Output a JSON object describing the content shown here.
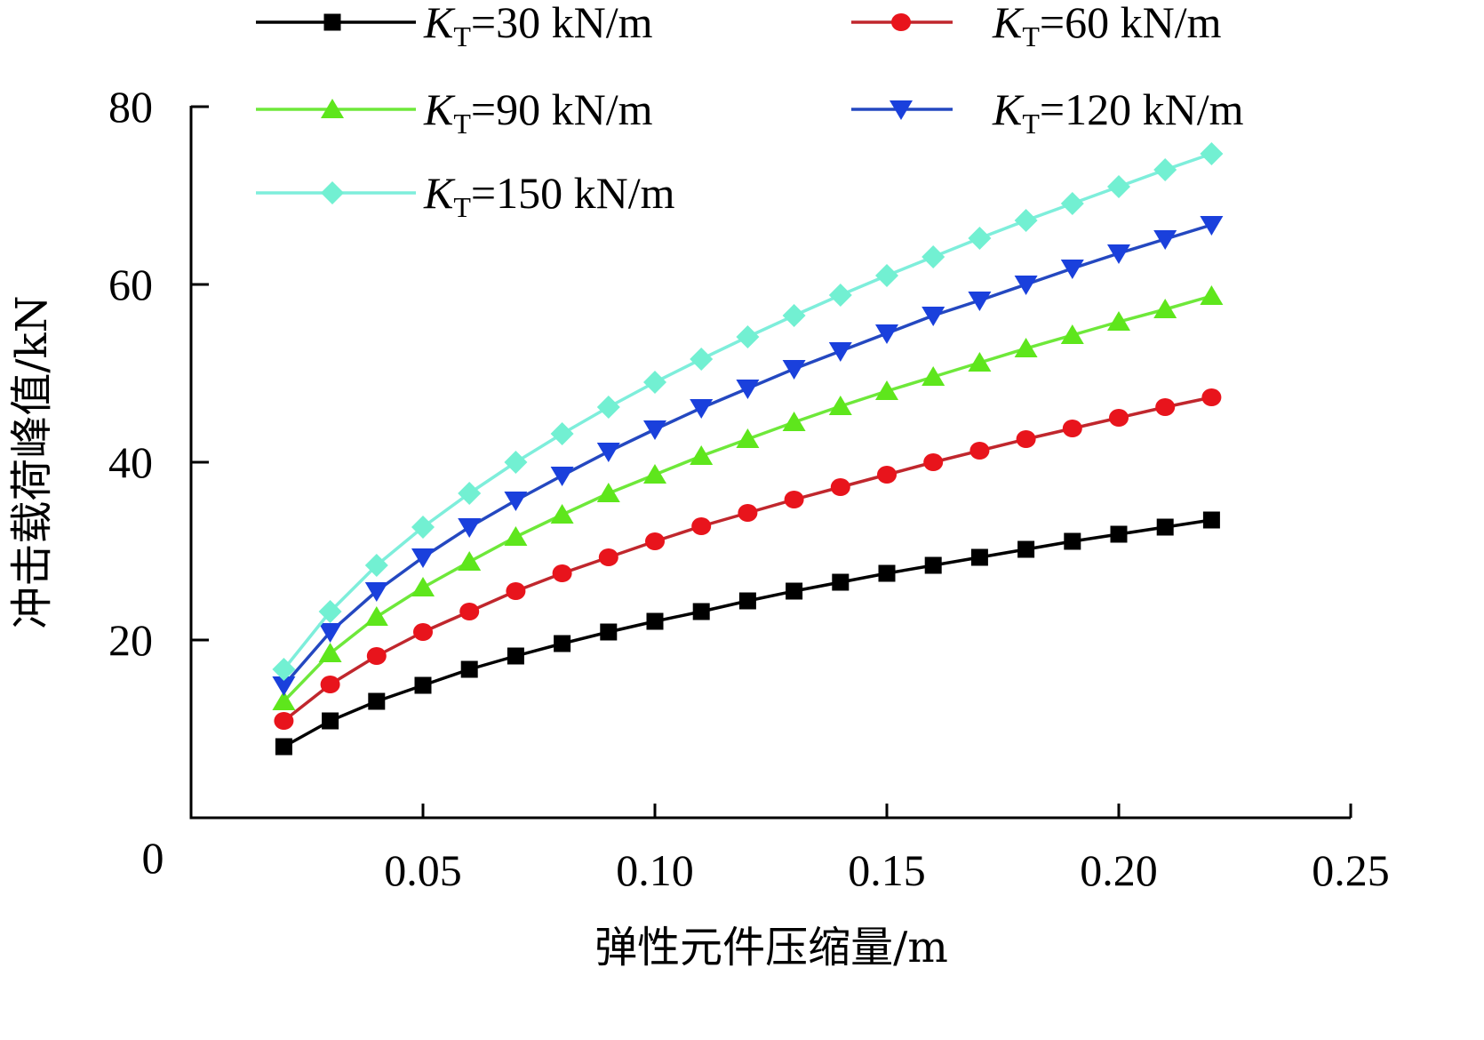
{
  "chart_data": {
    "type": "line",
    "title": "",
    "xlabel": "弹性元件压缩量/m",
    "ylabel": "冲击载荷峰值/kN",
    "xlim": [
      0,
      0.25
    ],
    "ylim": [
      0,
      80
    ],
    "x_ticks": [
      "0.05",
      "0.10",
      "0.15",
      "0.20",
      "0.25"
    ],
    "x_tick_values": [
      0.05,
      0.1,
      0.15,
      0.2,
      0.25
    ],
    "y_ticks": [
      "20",
      "40",
      "60",
      "80"
    ],
    "y_tick_values": [
      20,
      40,
      60,
      80
    ],
    "origin_label": "0",
    "grid": false,
    "legend_position": "top",
    "x": [
      0.02,
      0.03,
      0.04,
      0.05,
      0.06,
      0.07,
      0.08,
      0.09,
      0.1,
      0.11,
      0.12,
      0.13,
      0.14,
      0.15,
      0.16,
      0.17,
      0.18,
      0.19,
      0.2,
      0.21,
      0.22
    ],
    "series": [
      {
        "name": "KT=30 kN/m",
        "legend_k": "K",
        "legend_sub": "T",
        "legend_rest": "=30 kN/m",
        "color": "#000000",
        "marker": "square",
        "values": [
          8.0,
          10.9,
          13.1,
          14.9,
          16.7,
          18.2,
          19.6,
          20.9,
          22.1,
          23.2,
          24.4,
          25.5,
          26.5,
          27.5,
          28.4,
          29.3,
          30.2,
          31.1,
          31.9,
          32.7,
          33.5
        ]
      },
      {
        "name": "KT=60 kN/m",
        "legend_k": "K",
        "legend_sub": "T",
        "legend_rest": "=60 kN/m",
        "color": "#e8141c",
        "line_color": "#c0272d",
        "marker": "circle",
        "values": [
          10.9,
          15.0,
          18.2,
          20.9,
          23.2,
          25.5,
          27.5,
          29.3,
          31.1,
          32.8,
          34.3,
          35.8,
          37.2,
          38.6,
          40.0,
          41.3,
          42.6,
          43.8,
          45.0,
          46.2,
          47.3
        ]
      },
      {
        "name": "KT=90 kN/m",
        "legend_k": "K",
        "legend_sub": "T",
        "legend_rest": "=90 kN/m",
        "color": "#5ee61c",
        "line_color": "#6ee83a",
        "marker": "triangle-up",
        "values": [
          13.1,
          18.5,
          22.6,
          25.9,
          28.8,
          31.6,
          34.1,
          36.5,
          38.6,
          40.7,
          42.6,
          44.5,
          46.3,
          48.0,
          49.6,
          51.2,
          52.8,
          54.3,
          55.8,
          57.2,
          58.7
        ]
      },
      {
        "name": "KT=120 kN/m",
        "legend_k": "K",
        "legend_sub": "T",
        "legend_rest": "=120 kN/m",
        "color": "#1a40dc",
        "line_color": "#2448c0",
        "marker": "triangle-down",
        "values": [
          14.9,
          20.9,
          25.5,
          29.3,
          32.7,
          35.7,
          38.5,
          41.2,
          43.7,
          46.1,
          48.3,
          50.5,
          52.5,
          54.5,
          56.5,
          58.2,
          60.0,
          61.8,
          63.5,
          65.1,
          66.7
        ]
      },
      {
        "name": "KT=150 kN/m",
        "legend_k": "K",
        "legend_sub": "T",
        "legend_rest": "=150 kN/m",
        "color": "#72f0d2",
        "line_color": "#7eeedb",
        "marker": "diamond",
        "values": [
          16.7,
          23.2,
          28.4,
          32.7,
          36.5,
          40.0,
          43.2,
          46.2,
          49.0,
          51.6,
          54.1,
          56.5,
          58.8,
          61.0,
          63.1,
          65.2,
          67.2,
          69.1,
          71.0,
          72.9,
          74.7
        ]
      }
    ]
  }
}
